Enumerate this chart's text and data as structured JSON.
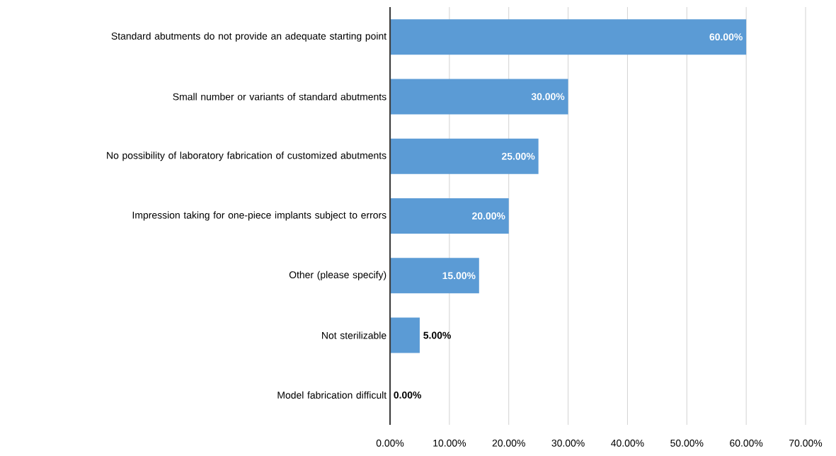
{
  "chart_data": {
    "type": "bar",
    "orientation": "horizontal",
    "categories": [
      "Standard abutments do not provide an adequate starting point",
      "Small number or variants of standard abutments",
      "No possibility of laboratory fabrication of customized abutments",
      "Impression taking for one-piece implants subject to errors",
      "Other (please specify)",
      "Not sterilizable",
      "Model fabrication difficult"
    ],
    "values": [
      60,
      30,
      25,
      20,
      15,
      5,
      0
    ],
    "value_labels": [
      "60.00%",
      "30.00%",
      "25.00%",
      "20.00%",
      "15.00%",
      "5.00%",
      "0.00%"
    ],
    "color": "#5b9bd5",
    "xlim": [
      0,
      70
    ],
    "xticks": [
      {
        "value": 0,
        "label": "0.00%"
      },
      {
        "value": 10,
        "label": "10.00%"
      },
      {
        "value": 20,
        "label": "20.00%"
      },
      {
        "value": 30,
        "label": "30.00%"
      },
      {
        "value": 40,
        "label": "40.00%"
      },
      {
        "value": 50,
        "label": "50.00%"
      },
      {
        "value": 60,
        "label": "60.00%"
      },
      {
        "value": 70,
        "label": "70.00%"
      }
    ],
    "grid": "x"
  }
}
